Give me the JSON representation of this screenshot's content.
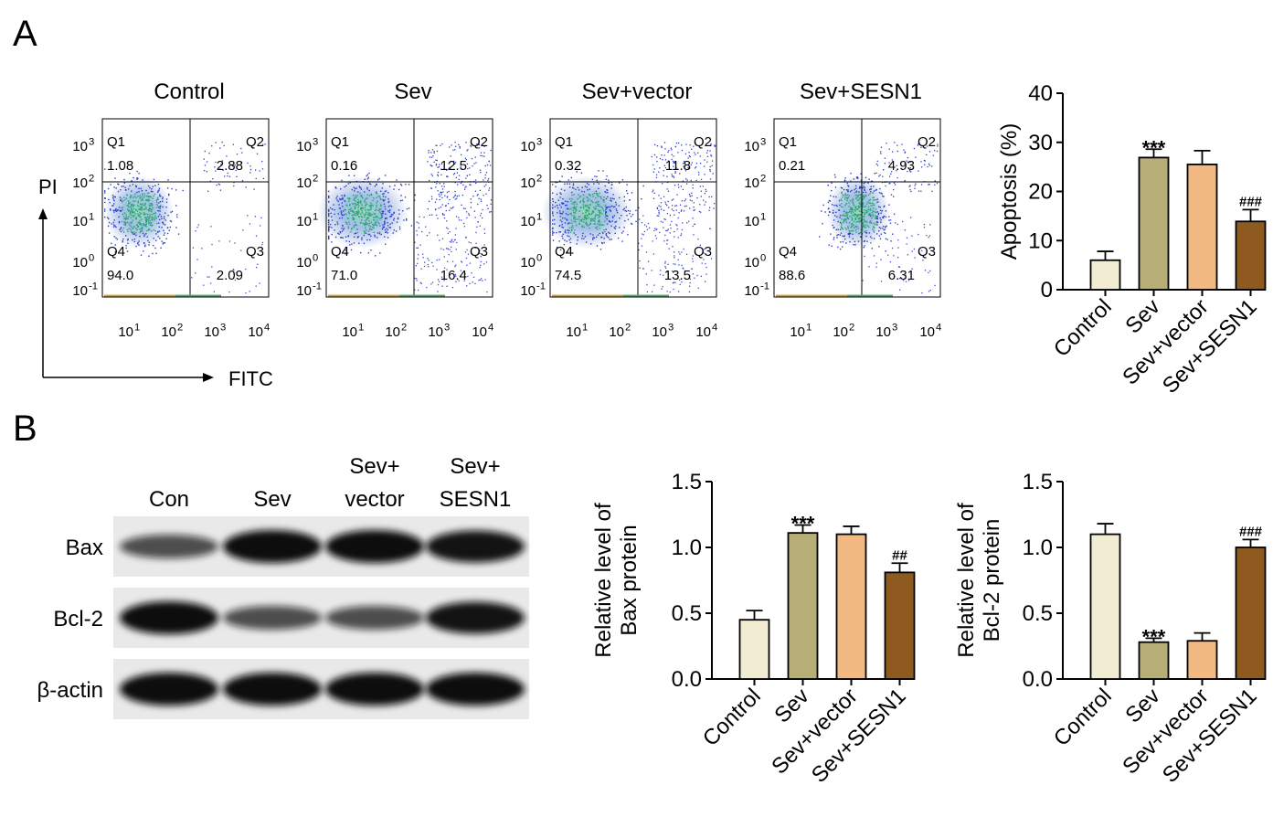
{
  "panels": {
    "a": "A",
    "b": "B"
  },
  "flow": {
    "y_axis": "PI",
    "x_axis": "FITC",
    "quadrant_labels": [
      "Q1",
      "Q2",
      "Q3",
      "Q4"
    ],
    "ticks": [
      "10",
      "10",
      "10",
      "10",
      "10"
    ],
    "tick_exponents_y": [
      "-1",
      "0",
      "1",
      "2",
      "3"
    ],
    "tick_exponents_x": [
      "1",
      "2",
      "3",
      "4"
    ],
    "plots": [
      {
        "title": "Control",
        "q1": "1.08",
        "q2": "2.88",
        "q3": "2.09",
        "q4": "94.0"
      },
      {
        "title": "Sev",
        "q1": "0.16",
        "q2": "12.5",
        "q3": "16.4",
        "q4": "71.0"
      },
      {
        "title": "Sev+vector",
        "q1": "0.32",
        "q2": "11.8",
        "q3": "13.5",
        "q4": "74.5"
      },
      {
        "title": "Sev+SESN1",
        "q1": "0.21",
        "q2": "4.93",
        "q3": "6.31",
        "q4": "88.6"
      }
    ]
  },
  "blot": {
    "lanes": [
      "Con",
      "Sev",
      "Sev+ vector",
      "Sev+ SESN1"
    ],
    "lane_line1": [
      "",
      "",
      "Sev+",
      "Sev+"
    ],
    "lane_line2": [
      "Con",
      "Sev",
      "vector",
      "SESN1"
    ],
    "rows": [
      {
        "label": "Bax",
        "intensity": [
          0.55,
          1.0,
          1.0,
          0.95
        ]
      },
      {
        "label": "Bcl-2",
        "intensity": [
          1.0,
          0.55,
          0.55,
          0.95
        ]
      },
      {
        "label": "β-actin",
        "intensity": [
          1.0,
          1.0,
          1.0,
          1.0
        ]
      }
    ]
  },
  "colors": [
    "#f2ecd2",
    "#b7ad76",
    "#f2b982",
    "#8f5a20"
  ],
  "chart_data": [
    {
      "type": "bar",
      "ylabel": "Apoptosis (%)",
      "categories": [
        "Control",
        "Sev",
        "Sev+vector",
        "Sev+SESN1"
      ],
      "values": [
        6.0,
        26.9,
        25.5,
        13.9
      ],
      "errors": [
        1.8,
        1.7,
        2.8,
        2.4
      ],
      "annotations": [
        "",
        "***",
        "",
        "###"
      ],
      "ylim": [
        0,
        40
      ],
      "yticks": [
        "0",
        "10",
        "20",
        "30",
        "40"
      ]
    },
    {
      "type": "bar",
      "ylabel": "Relative level of Bax protein",
      "ylabel_lines": [
        "Relative level of",
        "Bax protein"
      ],
      "categories": [
        "Control",
        "Sev",
        "Sev+vector",
        "Sev+SESN1"
      ],
      "values": [
        0.45,
        1.11,
        1.1,
        0.81
      ],
      "errors": [
        0.07,
        0.06,
        0.06,
        0.07
      ],
      "annotations": [
        "",
        "***",
        "",
        "##"
      ],
      "ylim": [
        0,
        1.5
      ],
      "yticks": [
        "0.0",
        "0.5",
        "1.0",
        "1.5"
      ]
    },
    {
      "type": "bar",
      "ylabel": "Relative level of Bcl-2 protein",
      "ylabel_lines": [
        "Relative level of",
        "Bcl-2 protein"
      ],
      "categories": [
        "Control",
        "Sev",
        "Sev+vector",
        "Sev+SESN1"
      ],
      "values": [
        1.1,
        0.28,
        0.29,
        1.0
      ],
      "errors": [
        0.08,
        0.03,
        0.06,
        0.06
      ],
      "annotations": [
        "",
        "***",
        "",
        "###"
      ],
      "ylim": [
        0,
        1.5
      ],
      "yticks": [
        "0.0",
        "0.5",
        "1.0",
        "1.5"
      ]
    }
  ]
}
